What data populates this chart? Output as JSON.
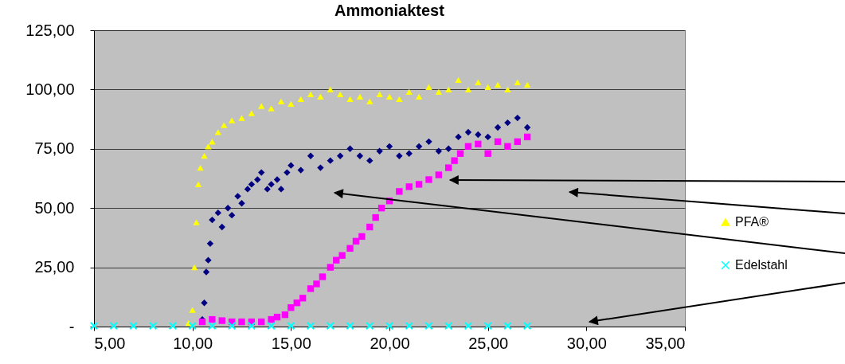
{
  "chart_data": {
    "type": "scatter",
    "title": "Ammoniaktest",
    "xlim": [
      5,
      35
    ],
    "xticks": [
      {
        "value": 5,
        "label": "5,00"
      },
      {
        "value": 10,
        "label": "10,00"
      },
      {
        "value": 15,
        "label": "15,00"
      },
      {
        "value": 20,
        "label": "20,00"
      },
      {
        "value": 25,
        "label": "25,00"
      },
      {
        "value": 30,
        "label": "30,00"
      },
      {
        "value": 35,
        "label": "35,00"
      }
    ],
    "ylim": [
      0,
      125
    ],
    "yticks": [
      {
        "value": 0,
        "label": "-"
      },
      {
        "value": 25,
        "label": "25,00"
      },
      {
        "value": 50,
        "label": "50,00"
      },
      {
        "value": 75,
        "label": "75,00"
      },
      {
        "value": 100,
        "label": "100,00"
      },
      {
        "value": 125,
        "label": "125,00"
      }
    ],
    "grid": "y",
    "legend": "right",
    "series": [
      {
        "color": "#000080",
        "marker": "diamond",
        "x": [
          10.5,
          10.6,
          10.7,
          10.8,
          10.9,
          11,
          11.3,
          11.5,
          11.8,
          12,
          12.3,
          12.5,
          12.8,
          13,
          13.3,
          13.5,
          13.8,
          14,
          14.3,
          14.5,
          14.8,
          15,
          15.5,
          16,
          16.5,
          17,
          17.5,
          18,
          18.5,
          19,
          19.5,
          20,
          20.5,
          21,
          21.5,
          22,
          22.5,
          23,
          23.5,
          24,
          24.5,
          25,
          25.5,
          26,
          26.5,
          27
        ],
        "values": [
          3,
          10,
          23,
          28,
          35,
          45,
          48,
          42,
          50,
          47,
          55,
          52,
          58,
          60,
          62,
          65,
          58,
          60,
          62,
          58,
          65,
          68,
          66,
          72,
          67,
          70,
          72,
          75,
          72,
          70,
          74,
          76,
          72,
          73,
          76,
          78,
          74,
          75,
          80,
          82,
          81,
          80,
          84,
          86,
          88,
          84
        ]
      },
      {
        "color": "#ff00ff",
        "marker": "square",
        "x": [
          10.5,
          11,
          11.5,
          12,
          12.5,
          13,
          13.5,
          14,
          14.3,
          14.7,
          15,
          15.3,
          15.6,
          16,
          16.3,
          16.6,
          17,
          17.3,
          17.6,
          18,
          18.3,
          18.6,
          19,
          19.3,
          19.6,
          20,
          20.5,
          21,
          21.5,
          22,
          22.5,
          23,
          23.3,
          23.6,
          24,
          24.5,
          25,
          25.5,
          26,
          26.5,
          27
        ],
        "values": [
          2,
          3,
          2.5,
          2,
          2,
          2,
          2,
          3,
          4,
          5,
          8,
          10,
          12,
          16,
          18,
          21,
          25,
          28,
          30,
          33,
          36,
          38,
          42,
          46,
          50,
          53,
          57,
          59,
          60,
          62,
          64,
          67,
          70,
          73,
          76,
          77,
          73,
          78,
          76,
          78,
          80
        ]
      },
      {
        "name": "PFA®",
        "color": "#ffff00",
        "marker": "triangle",
        "x": [
          9.8,
          10,
          10.1,
          10.2,
          10.3,
          10.4,
          10.6,
          10.8,
          11,
          11.3,
          11.6,
          12,
          12.5,
          13,
          13.5,
          14,
          14.5,
          15,
          15.5,
          16,
          16.5,
          17,
          17.5,
          18,
          18.5,
          19,
          19.5,
          20,
          20.5,
          21,
          21.5,
          22,
          22.5,
          23,
          23.5,
          24,
          24.5,
          25,
          25.5,
          26,
          26.5,
          27
        ],
        "values": [
          1.5,
          7,
          25,
          44,
          60,
          67,
          72,
          76,
          78,
          82,
          85,
          87,
          88,
          90,
          93,
          92,
          95,
          94,
          96,
          98,
          97,
          100,
          98,
          96,
          97,
          95,
          98,
          97,
          96,
          99,
          97,
          101,
          99,
          100,
          104,
          100,
          103,
          101,
          102,
          100,
          103,
          102
        ]
      },
      {
        "name": "Edelstahl",
        "color": "#00ffff",
        "marker": "cross",
        "x": [
          5,
          6,
          7,
          8,
          9,
          10,
          11,
          12,
          13,
          14,
          15,
          16,
          17,
          18,
          19,
          20,
          21,
          22,
          23,
          24,
          25,
          26,
          27
        ],
        "values": [
          0.3,
          0.3,
          0.3,
          0.3,
          0.3,
          0.3,
          0.3,
          0.3,
          0.3,
          0.3,
          0.3,
          0.3,
          0.3,
          0.3,
          0.3,
          0.3,
          0.3,
          0.3,
          0.3,
          0.3,
          0.3,
          0.3,
          0.3
        ]
      }
    ]
  }
}
